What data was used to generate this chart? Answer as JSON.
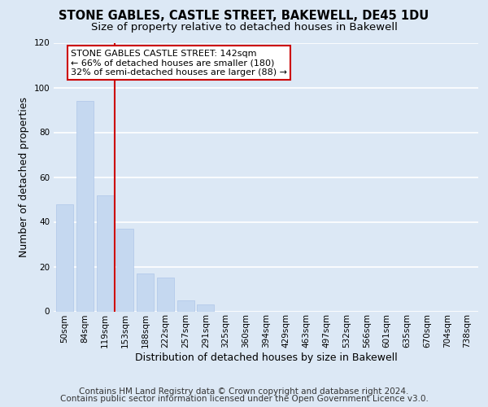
{
  "title": "STONE GABLES, CASTLE STREET, BAKEWELL, DE45 1DU",
  "subtitle": "Size of property relative to detached houses in Bakewell",
  "xlabel": "Distribution of detached houses by size in Bakewell",
  "ylabel": "Number of detached properties",
  "bar_labels": [
    "50sqm",
    "84sqm",
    "119sqm",
    "153sqm",
    "188sqm",
    "222sqm",
    "257sqm",
    "291sqm",
    "325sqm",
    "360sqm",
    "394sqm",
    "429sqm",
    "463sqm",
    "497sqm",
    "532sqm",
    "566sqm",
    "601sqm",
    "635sqm",
    "670sqm",
    "704sqm",
    "738sqm"
  ],
  "bar_values": [
    48,
    94,
    52,
    37,
    17,
    15,
    5,
    3,
    0,
    0,
    0,
    0,
    0,
    0,
    0,
    0,
    0,
    0,
    0,
    0,
    0
  ],
  "bar_color": "#c5d8f0",
  "bar_edge_color": "#aec6e8",
  "ylim": [
    0,
    120
  ],
  "yticks": [
    0,
    20,
    40,
    60,
    80,
    100,
    120
  ],
  "vline_color": "#cc0000",
  "annotation_text": "STONE GABLES CASTLE STREET: 142sqm\n← 66% of detached houses are smaller (180)\n32% of semi-detached houses are larger (88) →",
  "annotation_box_color": "#ffffff",
  "annotation_box_edge": "#cc0000",
  "footer1": "Contains HM Land Registry data © Crown copyright and database right 2024.",
  "footer2": "Contains public sector information licensed under the Open Government Licence v3.0.",
  "bg_color": "#dce8f5",
  "plot_bg_color": "#dce8f5",
  "grid_color": "#ffffff",
  "title_fontsize": 10.5,
  "subtitle_fontsize": 9.5,
  "footer_fontsize": 7.5,
  "tick_fontsize": 7.5,
  "axis_label_fontsize": 9
}
